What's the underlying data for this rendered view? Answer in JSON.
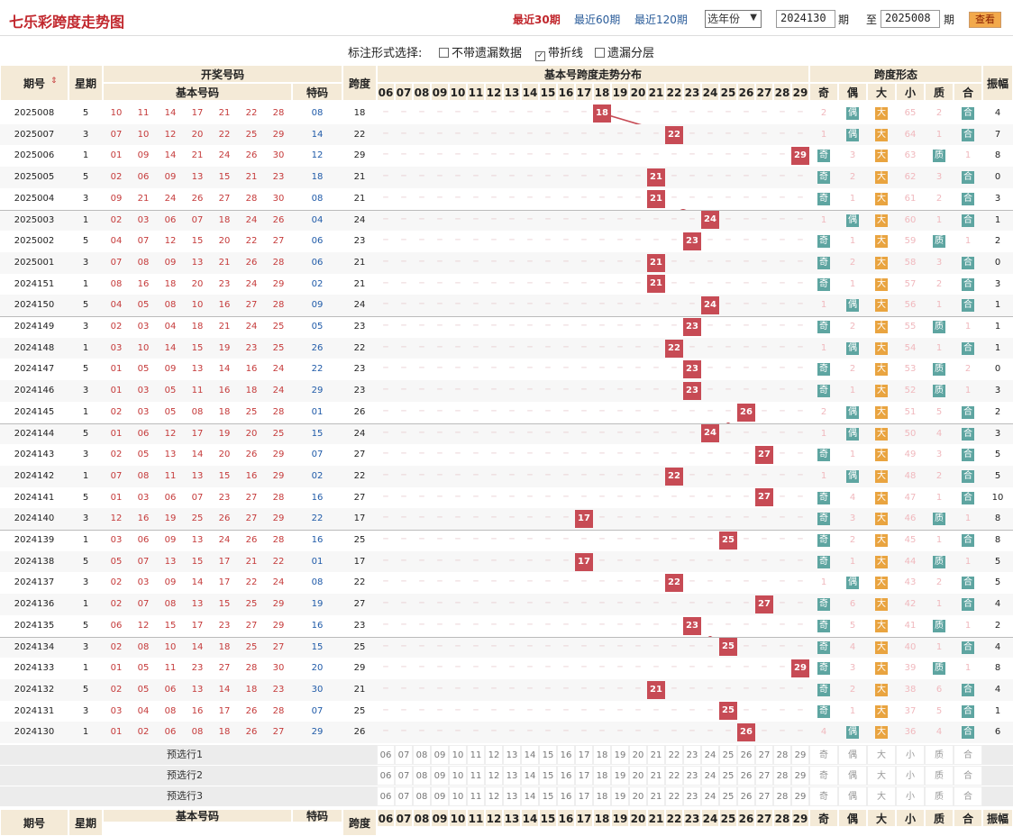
{
  "header": {
    "title": "七乐彩跨度走势图",
    "periods": [
      "最近30期",
      "最近60期",
      "最近120期"
    ],
    "active_period": 0,
    "year_select": "选年份",
    "from_value": "2024130",
    "from_label": "期",
    "to_prefix": "至",
    "to_value": "2025008",
    "to_label": "期",
    "view_button": "查看"
  },
  "options": {
    "label": "标注形式选择:",
    "items": [
      {
        "label": "不带遗漏数据",
        "checked": false
      },
      {
        "label": "带折线",
        "checked": true
      },
      {
        "label": "遗漏分层",
        "checked": false
      }
    ]
  },
  "table_headers": {
    "issue": "期号",
    "weekday": "星期",
    "draw": "开奖号码",
    "basic": "基本号码",
    "special": "特码",
    "span": "跨度",
    "dist": "基本号跨度走势分布",
    "form": "跨度形态",
    "odd": "奇",
    "even": "偶",
    "big": "大",
    "small": "小",
    "prime": "质",
    "composite": "合",
    "amp": "振幅"
  },
  "span_cols": [
    "06",
    "07",
    "08",
    "09",
    "10",
    "11",
    "12",
    "13",
    "14",
    "15",
    "16",
    "17",
    "18",
    "19",
    "20",
    "21",
    "22",
    "23",
    "24",
    "25",
    "26",
    "27",
    "28",
    "29"
  ],
  "form_labels": {
    "odd": "奇",
    "even": "偶",
    "big": "大",
    "small": "小",
    "prime": "质",
    "composite": "合"
  },
  "rows": [
    {
      "issue": "2025008",
      "wd": "5",
      "nums": [
        "10",
        "11",
        "14",
        "17",
        "21",
        "22",
        "28"
      ],
      "sp": "08",
      "span": "18",
      "o": "2",
      "e": "偶",
      "b": "大",
      "s": "65",
      "p": "2",
      "c": "合",
      "amp": "4"
    },
    {
      "issue": "2025007",
      "wd": "3",
      "nums": [
        "07",
        "10",
        "12",
        "20",
        "22",
        "25",
        "29"
      ],
      "sp": "14",
      "span": "22",
      "o": "1",
      "e": "偶",
      "b": "大",
      "s": "64",
      "p": "1",
      "c": "合",
      "amp": "7"
    },
    {
      "issue": "2025006",
      "wd": "1",
      "nums": [
        "01",
        "09",
        "14",
        "21",
        "24",
        "26",
        "30"
      ],
      "sp": "12",
      "span": "29",
      "o": "奇",
      "e": "3",
      "b": "大",
      "s": "63",
      "p": "质",
      "c": "1",
      "amp": "8"
    },
    {
      "issue": "2025005",
      "wd": "5",
      "nums": [
        "02",
        "06",
        "09",
        "13",
        "15",
        "21",
        "23"
      ],
      "sp": "18",
      "span": "21",
      "o": "奇",
      "e": "2",
      "b": "大",
      "s": "62",
      "p": "3",
      "c": "合",
      "amp": "0"
    },
    {
      "issue": "2025004",
      "wd": "3",
      "nums": [
        "09",
        "21",
        "24",
        "26",
        "27",
        "28",
        "30"
      ],
      "sp": "08",
      "span": "21",
      "o": "奇",
      "e": "1",
      "b": "大",
      "s": "61",
      "p": "2",
      "c": "合",
      "amp": "3"
    },
    {
      "issue": "2025003",
      "wd": "1",
      "nums": [
        "02",
        "03",
        "06",
        "07",
        "18",
        "24",
        "26"
      ],
      "sp": "04",
      "span": "24",
      "o": "1",
      "e": "偶",
      "b": "大",
      "s": "60",
      "p": "1",
      "c": "合",
      "amp": "1"
    },
    {
      "issue": "2025002",
      "wd": "5",
      "nums": [
        "04",
        "07",
        "12",
        "15",
        "20",
        "22",
        "27"
      ],
      "sp": "06",
      "span": "23",
      "o": "奇",
      "e": "1",
      "b": "大",
      "s": "59",
      "p": "质",
      "c": "1",
      "amp": "2"
    },
    {
      "issue": "2025001",
      "wd": "3",
      "nums": [
        "07",
        "08",
        "09",
        "13",
        "21",
        "26",
        "28"
      ],
      "sp": "06",
      "span": "21",
      "o": "奇",
      "e": "2",
      "b": "大",
      "s": "58",
      "p": "3",
      "c": "合",
      "amp": "0"
    },
    {
      "issue": "2024151",
      "wd": "1",
      "nums": [
        "08",
        "16",
        "18",
        "20",
        "23",
        "24",
        "29"
      ],
      "sp": "02",
      "span": "21",
      "o": "奇",
      "e": "1",
      "b": "大",
      "s": "57",
      "p": "2",
      "c": "合",
      "amp": "3"
    },
    {
      "issue": "2024150",
      "wd": "5",
      "nums": [
        "04",
        "05",
        "08",
        "10",
        "16",
        "27",
        "28"
      ],
      "sp": "09",
      "span": "24",
      "o": "1",
      "e": "偶",
      "b": "大",
      "s": "56",
      "p": "1",
      "c": "合",
      "amp": "1"
    },
    {
      "issue": "2024149",
      "wd": "3",
      "nums": [
        "02",
        "03",
        "04",
        "18",
        "21",
        "24",
        "25"
      ],
      "sp": "05",
      "span": "23",
      "o": "奇",
      "e": "2",
      "b": "大",
      "s": "55",
      "p": "质",
      "c": "1",
      "amp": "1"
    },
    {
      "issue": "2024148",
      "wd": "1",
      "nums": [
        "03",
        "10",
        "14",
        "15",
        "19",
        "23",
        "25"
      ],
      "sp": "26",
      "span": "22",
      "o": "1",
      "e": "偶",
      "b": "大",
      "s": "54",
      "p": "1",
      "c": "合",
      "amp": "1"
    },
    {
      "issue": "2024147",
      "wd": "5",
      "nums": [
        "01",
        "05",
        "09",
        "13",
        "14",
        "16",
        "24"
      ],
      "sp": "22",
      "span": "23",
      "o": "奇",
      "e": "2",
      "b": "大",
      "s": "53",
      "p": "质",
      "c": "2",
      "amp": "0"
    },
    {
      "issue": "2024146",
      "wd": "3",
      "nums": [
        "01",
        "03",
        "05",
        "11",
        "16",
        "18",
        "24"
      ],
      "sp": "29",
      "span": "23",
      "o": "奇",
      "e": "1",
      "b": "大",
      "s": "52",
      "p": "质",
      "c": "1",
      "amp": "3"
    },
    {
      "issue": "2024145",
      "wd": "1",
      "nums": [
        "02",
        "03",
        "05",
        "08",
        "18",
        "25",
        "28"
      ],
      "sp": "01",
      "span": "26",
      "o": "2",
      "e": "偶",
      "b": "大",
      "s": "51",
      "p": "5",
      "c": "合",
      "amp": "2"
    },
    {
      "issue": "2024144",
      "wd": "5",
      "nums": [
        "01",
        "06",
        "12",
        "17",
        "19",
        "20",
        "25"
      ],
      "sp": "15",
      "span": "24",
      "o": "1",
      "e": "偶",
      "b": "大",
      "s": "50",
      "p": "4",
      "c": "合",
      "amp": "3"
    },
    {
      "issue": "2024143",
      "wd": "3",
      "nums": [
        "02",
        "05",
        "13",
        "14",
        "20",
        "26",
        "29"
      ],
      "sp": "07",
      "span": "27",
      "o": "奇",
      "e": "1",
      "b": "大",
      "s": "49",
      "p": "3",
      "c": "合",
      "amp": "5"
    },
    {
      "issue": "2024142",
      "wd": "1",
      "nums": [
        "07",
        "08",
        "11",
        "13",
        "15",
        "16",
        "29"
      ],
      "sp": "02",
      "span": "22",
      "o": "1",
      "e": "偶",
      "b": "大",
      "s": "48",
      "p": "2",
      "c": "合",
      "amp": "5"
    },
    {
      "issue": "2024141",
      "wd": "5",
      "nums": [
        "01",
        "03",
        "06",
        "07",
        "23",
        "27",
        "28"
      ],
      "sp": "16",
      "span": "27",
      "o": "奇",
      "e": "4",
      "b": "大",
      "s": "47",
      "p": "1",
      "c": "合",
      "amp": "10"
    },
    {
      "issue": "2024140",
      "wd": "3",
      "nums": [
        "12",
        "16",
        "19",
        "25",
        "26",
        "27",
        "29"
      ],
      "sp": "22",
      "span": "17",
      "o": "奇",
      "e": "3",
      "b": "大",
      "s": "46",
      "p": "质",
      "c": "1",
      "amp": "8"
    },
    {
      "issue": "2024139",
      "wd": "1",
      "nums": [
        "03",
        "06",
        "09",
        "13",
        "24",
        "26",
        "28"
      ],
      "sp": "16",
      "span": "25",
      "o": "奇",
      "e": "2",
      "b": "大",
      "s": "45",
      "p": "1",
      "c": "合",
      "amp": "8"
    },
    {
      "issue": "2024138",
      "wd": "5",
      "nums": [
        "05",
        "07",
        "13",
        "15",
        "17",
        "21",
        "22"
      ],
      "sp": "01",
      "span": "17",
      "o": "奇",
      "e": "1",
      "b": "大",
      "s": "44",
      "p": "质",
      "c": "1",
      "amp": "5"
    },
    {
      "issue": "2024137",
      "wd": "3",
      "nums": [
        "02",
        "03",
        "09",
        "14",
        "17",
        "22",
        "24"
      ],
      "sp": "08",
      "span": "22",
      "o": "1",
      "e": "偶",
      "b": "大",
      "s": "43",
      "p": "2",
      "c": "合",
      "amp": "5"
    },
    {
      "issue": "2024136",
      "wd": "1",
      "nums": [
        "02",
        "07",
        "08",
        "13",
        "15",
        "25",
        "29"
      ],
      "sp": "19",
      "span": "27",
      "o": "奇",
      "e": "6",
      "b": "大",
      "s": "42",
      "p": "1",
      "c": "合",
      "amp": "4"
    },
    {
      "issue": "2024135",
      "wd": "5",
      "nums": [
        "06",
        "12",
        "15",
        "17",
        "23",
        "27",
        "29"
      ],
      "sp": "16",
      "span": "23",
      "o": "奇",
      "e": "5",
      "b": "大",
      "s": "41",
      "p": "质",
      "c": "1",
      "amp": "2"
    },
    {
      "issue": "2024134",
      "wd": "3",
      "nums": [
        "02",
        "08",
        "10",
        "14",
        "18",
        "25",
        "27"
      ],
      "sp": "15",
      "span": "25",
      "o": "奇",
      "e": "4",
      "b": "大",
      "s": "40",
      "p": "1",
      "c": "合",
      "amp": "4"
    },
    {
      "issue": "2024133",
      "wd": "1",
      "nums": [
        "01",
        "05",
        "11",
        "23",
        "27",
        "28",
        "30"
      ],
      "sp": "20",
      "span": "29",
      "o": "奇",
      "e": "3",
      "b": "大",
      "s": "39",
      "p": "质",
      "c": "1",
      "amp": "8"
    },
    {
      "issue": "2024132",
      "wd": "5",
      "nums": [
        "02",
        "05",
        "06",
        "13",
        "14",
        "18",
        "23"
      ],
      "sp": "30",
      "span": "21",
      "o": "奇",
      "e": "2",
      "b": "大",
      "s": "38",
      "p": "6",
      "c": "合",
      "amp": "4"
    },
    {
      "issue": "2024131",
      "wd": "3",
      "nums": [
        "03",
        "04",
        "08",
        "16",
        "17",
        "26",
        "28"
      ],
      "sp": "07",
      "span": "25",
      "o": "奇",
      "e": "1",
      "b": "大",
      "s": "37",
      "p": "5",
      "c": "合",
      "amp": "1"
    },
    {
      "issue": "2024130",
      "wd": "1",
      "nums": [
        "01",
        "02",
        "06",
        "08",
        "18",
        "26",
        "27"
      ],
      "sp": "29",
      "span": "26",
      "o": "4",
      "e": "偶",
      "b": "大",
      "s": "36",
      "p": "4",
      "c": "合",
      "amp": "6"
    }
  ],
  "predict": [
    "预选行1",
    "预选行2",
    "预选行3"
  ]
}
